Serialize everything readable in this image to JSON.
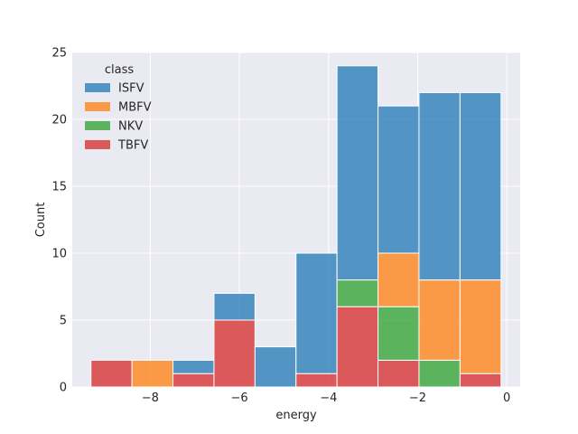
{
  "chart_data": {
    "type": "bar",
    "stacked": true,
    "xlabel": "energy",
    "ylabel": "Count",
    "xlim": [
      -9.75,
      0.3
    ],
    "ylim": [
      0,
      25
    ],
    "xticks": [
      -8,
      -6,
      -4,
      -2,
      0
    ],
    "xtick_labels": [
      "−8",
      "−6",
      "−4",
      "−2",
      "0"
    ],
    "yticks": [
      0,
      5,
      10,
      15,
      20,
      25
    ],
    "ytick_labels": [
      "0",
      "5",
      "10",
      "15",
      "20",
      "25"
    ],
    "grid": true,
    "legend_title": "class",
    "legend_position": "top-left",
    "bin_edges": [
      -9.33,
      -8.41,
      -7.49,
      -6.57,
      -5.65,
      -4.73,
      -3.81,
      -2.89,
      -1.97,
      -1.05,
      -0.13
    ],
    "series": [
      {
        "name": "TBFV",
        "color": "#d62728",
        "values": [
          2,
          0,
          1,
          5,
          0,
          1,
          6,
          2,
          0,
          1
        ]
      },
      {
        "name": "NKV",
        "color": "#2ca02c",
        "values": [
          0,
          0,
          0,
          0,
          0,
          0,
          2,
          4,
          2,
          0
        ]
      },
      {
        "name": "MBFV",
        "color": "#ff7f0e",
        "values": [
          0,
          2,
          0,
          0,
          0,
          0,
          0,
          4,
          6,
          7
        ]
      },
      {
        "name": "ISFV",
        "color": "#1f77b4",
        "values": [
          0,
          0,
          1,
          2,
          3,
          9,
          16,
          11,
          14,
          14
        ]
      }
    ],
    "legend_order": [
      "ISFV",
      "MBFV",
      "NKV",
      "TBFV"
    ]
  },
  "colors": {
    "plot_background": "#eaeaf2",
    "grid": "#ffffff",
    "bar_edge": "#ffffff"
  }
}
